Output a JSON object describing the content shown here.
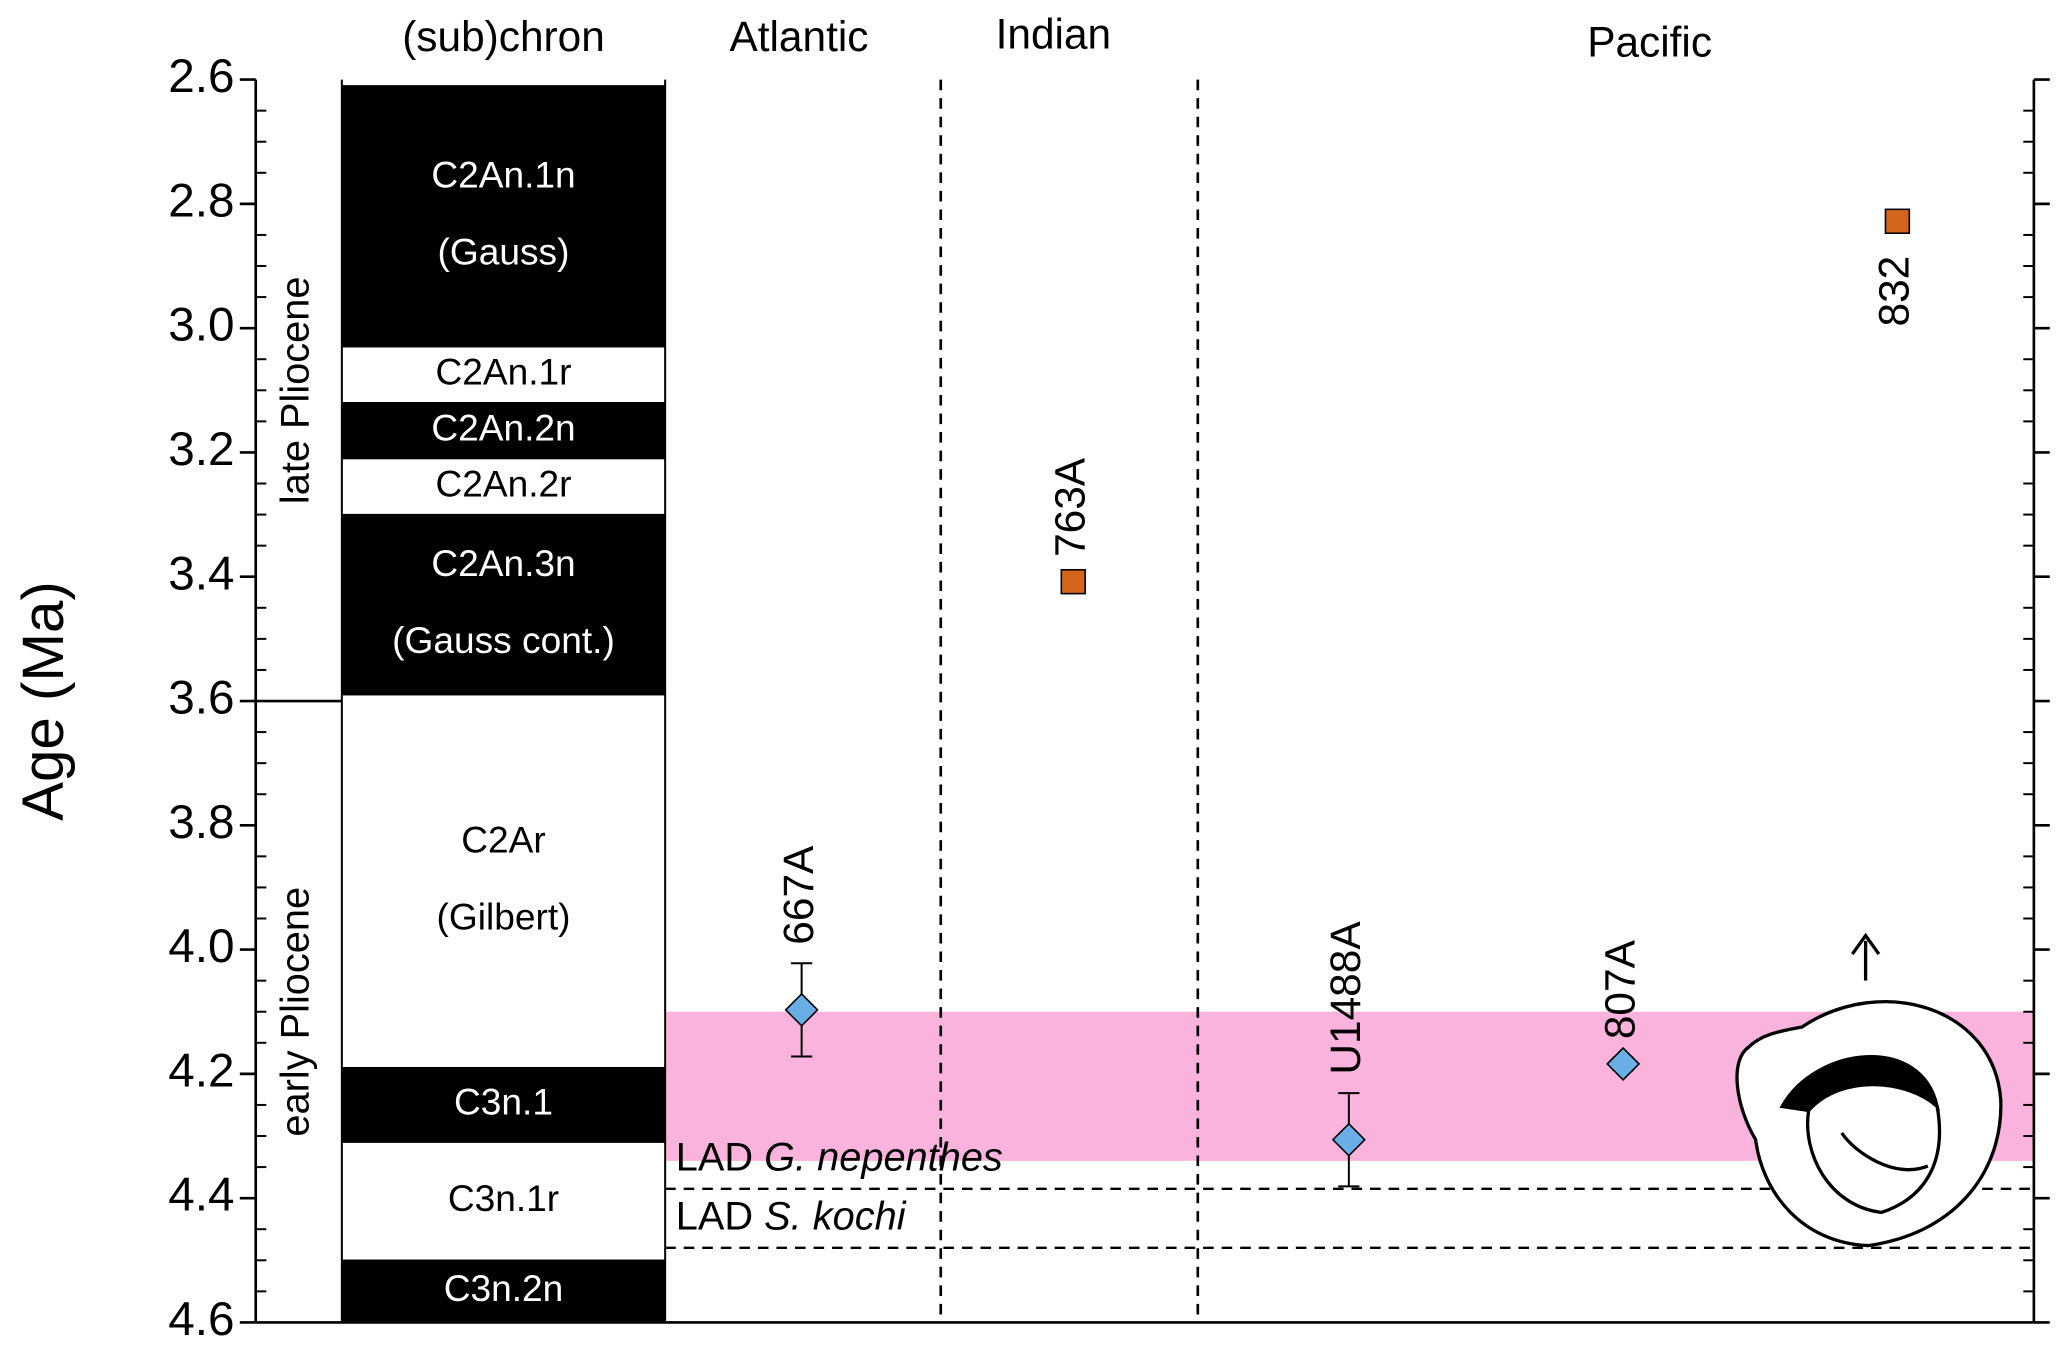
{
  "chart_data": {
    "type": "scatter",
    "y_label": "Age (Ma)",
    "ylim": [
      2.6,
      4.6
    ],
    "y_inverted": true,
    "yticks": [
      2.6,
      2.8,
      {
        "value": 3,
        "label": "3.0"
      },
      3.2,
      3.4,
      3.6,
      3.8,
      {
        "value": 4,
        "label": "4.0"
      },
      4.2,
      4.4,
      4.6
    ],
    "minor_yticks": [
      2.65,
      2.7,
      2.75,
      2.85,
      2.9,
      2.95,
      3.05,
      3.1,
      3.15,
      3.25,
      3.3,
      3.35,
      3.45,
      3.5,
      3.55,
      3.65,
      3.7,
      3.75,
      3.85,
      3.9,
      3.95,
      4.05,
      4.1,
      4.15,
      4.25,
      4.3,
      4.35,
      4.45,
      4.5,
      4.55
    ],
    "column_headers": [
      "(sub)chron",
      "Atlantic",
      "Indian",
      "Pacific"
    ],
    "epochs": [
      {
        "label": "late Pliocene",
        "top": 2.6,
        "bottom": 3.6
      },
      {
        "label": "early Pliocene",
        "top": 3.6,
        "bottom": 4.6
      }
    ],
    "chrons": [
      {
        "lines": [
          "C2An.1n",
          "(Gauss)"
        ],
        "top": 2.61,
        "bottom": 3.03,
        "polarity": "normal"
      },
      {
        "lines": [
          "C2An.1r"
        ],
        "top": 3.03,
        "bottom": 3.12,
        "polarity": "reversed"
      },
      {
        "lines": [
          "C2An.2n"
        ],
        "top": 3.12,
        "bottom": 3.21,
        "polarity": "normal"
      },
      {
        "lines": [
          "C2An.2r"
        ],
        "top": 3.21,
        "bottom": 3.3,
        "polarity": "reversed"
      },
      {
        "lines": [
          "C2An.3n",
          "(Gauss cont.)"
        ],
        "top": 3.3,
        "bottom": 3.59,
        "polarity": "normal"
      },
      {
        "lines": [
          "C2Ar",
          "(Gilbert)"
        ],
        "top": 3.59,
        "bottom": 4.19,
        "polarity": "reversed"
      },
      {
        "lines": [
          "C3n.1"
        ],
        "top": 4.19,
        "bottom": 4.31,
        "polarity": "normal"
      },
      {
        "lines": [
          "C3n.1r"
        ],
        "top": 4.31,
        "bottom": 4.5,
        "polarity": "reversed"
      },
      {
        "lines": [
          "C3n.2n"
        ],
        "top": 4.5,
        "bottom": 4.6,
        "polarity": "normal"
      }
    ],
    "band": {
      "top": 4.1,
      "bottom": 4.34,
      "color": "#f9b3dc"
    },
    "datum_lines": [
      {
        "prefix": "LAD",
        "taxon": "G. nepenthes",
        "age": 4.385
      },
      {
        "prefix": "LAD",
        "taxon": "S. kochi",
        "age": 4.48
      }
    ],
    "points": [
      {
        "label": "667A",
        "age": 4.097,
        "error": 0.075,
        "marker": "diamond",
        "color": "#6aaee8"
      },
      {
        "label": "763A",
        "age": 3.408,
        "error": 0.01,
        "marker": "square",
        "color": "#d4661c"
      },
      {
        "label": "U1488A",
        "age": 4.306,
        "error": 0.075,
        "marker": "diamond",
        "color": "#6aaee8"
      },
      {
        "label": "807A",
        "age": 4.184,
        "error": 0.01,
        "marker": "diamond",
        "color": "#6aaee8"
      },
      {
        "label": "832",
        "age": 2.828,
        "error": 0.01,
        "marker": "square",
        "color": "#d4661c"
      }
    ]
  }
}
